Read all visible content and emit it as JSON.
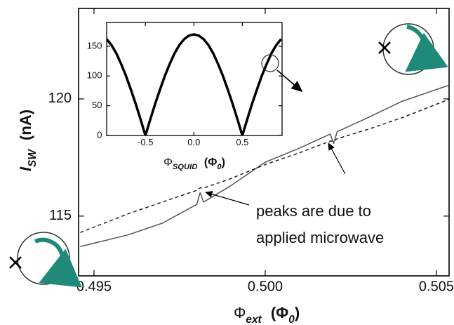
{
  "chart_data": [
    {
      "type": "line",
      "x": [
        0.4946,
        0.496,
        0.497,
        0.498,
        0.4981,
        0.4982,
        0.499,
        0.5,
        0.501,
        0.5019,
        0.502,
        0.5021,
        0.503,
        0.504,
        0.5054
      ],
      "series": [
        {
          "color": "#555555",
          "dashed": false,
          "values": [
            113.7,
            114.2,
            114.7,
            115.5,
            116.0,
            115.6,
            116.3,
            117.3,
            117.9,
            118.5,
            118.1,
            118.6,
            119.2,
            119.9,
            120.6
          ]
        },
        {
          "color": "#222222",
          "dashed": true,
          "values": [
            114.3,
            115.1,
            115.6,
            116.1,
            116.2,
            116.2,
            116.6,
            117.2,
            117.7,
            118.2,
            118.2,
            118.3,
            118.7,
            119.2,
            120.0
          ]
        }
      ],
      "xlim": [
        0.49455,
        0.50537
      ],
      "ylim": [
        112.45,
        123.86
      ],
      "xticks": [
        0.495,
        {
          "value": 0.5,
          "label": "0.500"
        },
        0.505
      ],
      "yticks": [
        115,
        120
      ],
      "xlabel": {
        "symbol": "Φ",
        "subscript": "ext",
        "unit": "(Φ",
        "unit_subscript": "0",
        "unit_end": ")"
      },
      "ylabel": {
        "symbol": "I",
        "subscript": "SW",
        "unit": "(nA)"
      },
      "annotations": [
        "peaks are due to",
        "applied microwave"
      ]
    },
    {
      "type": "line",
      "x": [
        -0.9,
        -0.85,
        -0.8,
        -0.75,
        -0.7,
        -0.65,
        -0.6,
        -0.55,
        -0.5,
        -0.45,
        -0.4,
        -0.35,
        -0.3,
        -0.25,
        -0.2,
        -0.15,
        -0.1,
        -0.05,
        0,
        0.05,
        0.1,
        0.15,
        0.2,
        0.25,
        0.3,
        0.35,
        0.4,
        0.45,
        0.5,
        0.55,
        0.6,
        0.65,
        0.7,
        0.75,
        0.8,
        0.85,
        0.9
      ],
      "series": [
        {
          "color": "#000000",
          "dashed": false,
          "values": [
            162,
            152,
            138,
            120,
            100,
            77,
            53,
            27,
            0,
            27,
            53,
            77,
            100,
            120,
            138,
            152,
            162,
            168,
            170,
            168,
            162,
            152,
            138,
            120,
            100,
            77,
            53,
            27,
            0,
            27,
            53,
            77,
            100,
            120,
            138,
            152,
            162
          ]
        }
      ],
      "xlim": [
        -0.9,
        0.91
      ],
      "ylim": [
        0,
        190
      ],
      "xticks": [
        {
          "value": -0.5,
          "label": "-0.5"
        },
        {
          "value": 0,
          "label": "0.0"
        },
        0.5
      ],
      "yticks": [
        0,
        50,
        100,
        150
      ],
      "xlabel": {
        "symbol": "Φ",
        "subscript": "SQUID",
        "unit": "(Φ",
        "unit_subscript": "0",
        "unit_end": ")"
      }
    }
  ]
}
